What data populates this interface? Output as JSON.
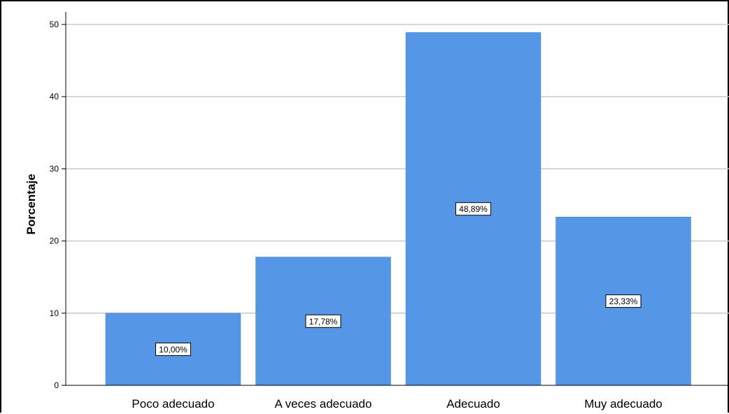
{
  "chart_data": {
    "type": "bar",
    "categories": [
      "Poco adecuado",
      "A veces adecuado",
      "Adecuado",
      "Muy adecuado"
    ],
    "values": [
      10.0,
      17.78,
      48.89,
      23.33
    ],
    "data_labels": [
      "10,00%",
      "17,78%",
      "48,89%",
      "23,33%"
    ],
    "ylabel": "Porcentaje",
    "xlabel": "",
    "ylim": [
      0,
      50
    ],
    "yticks": [
      "0",
      "10",
      "20",
      "30",
      "40",
      "50"
    ],
    "grid": true,
    "bar_color": "#5596e6",
    "grid_color": "#c8c8c8"
  }
}
